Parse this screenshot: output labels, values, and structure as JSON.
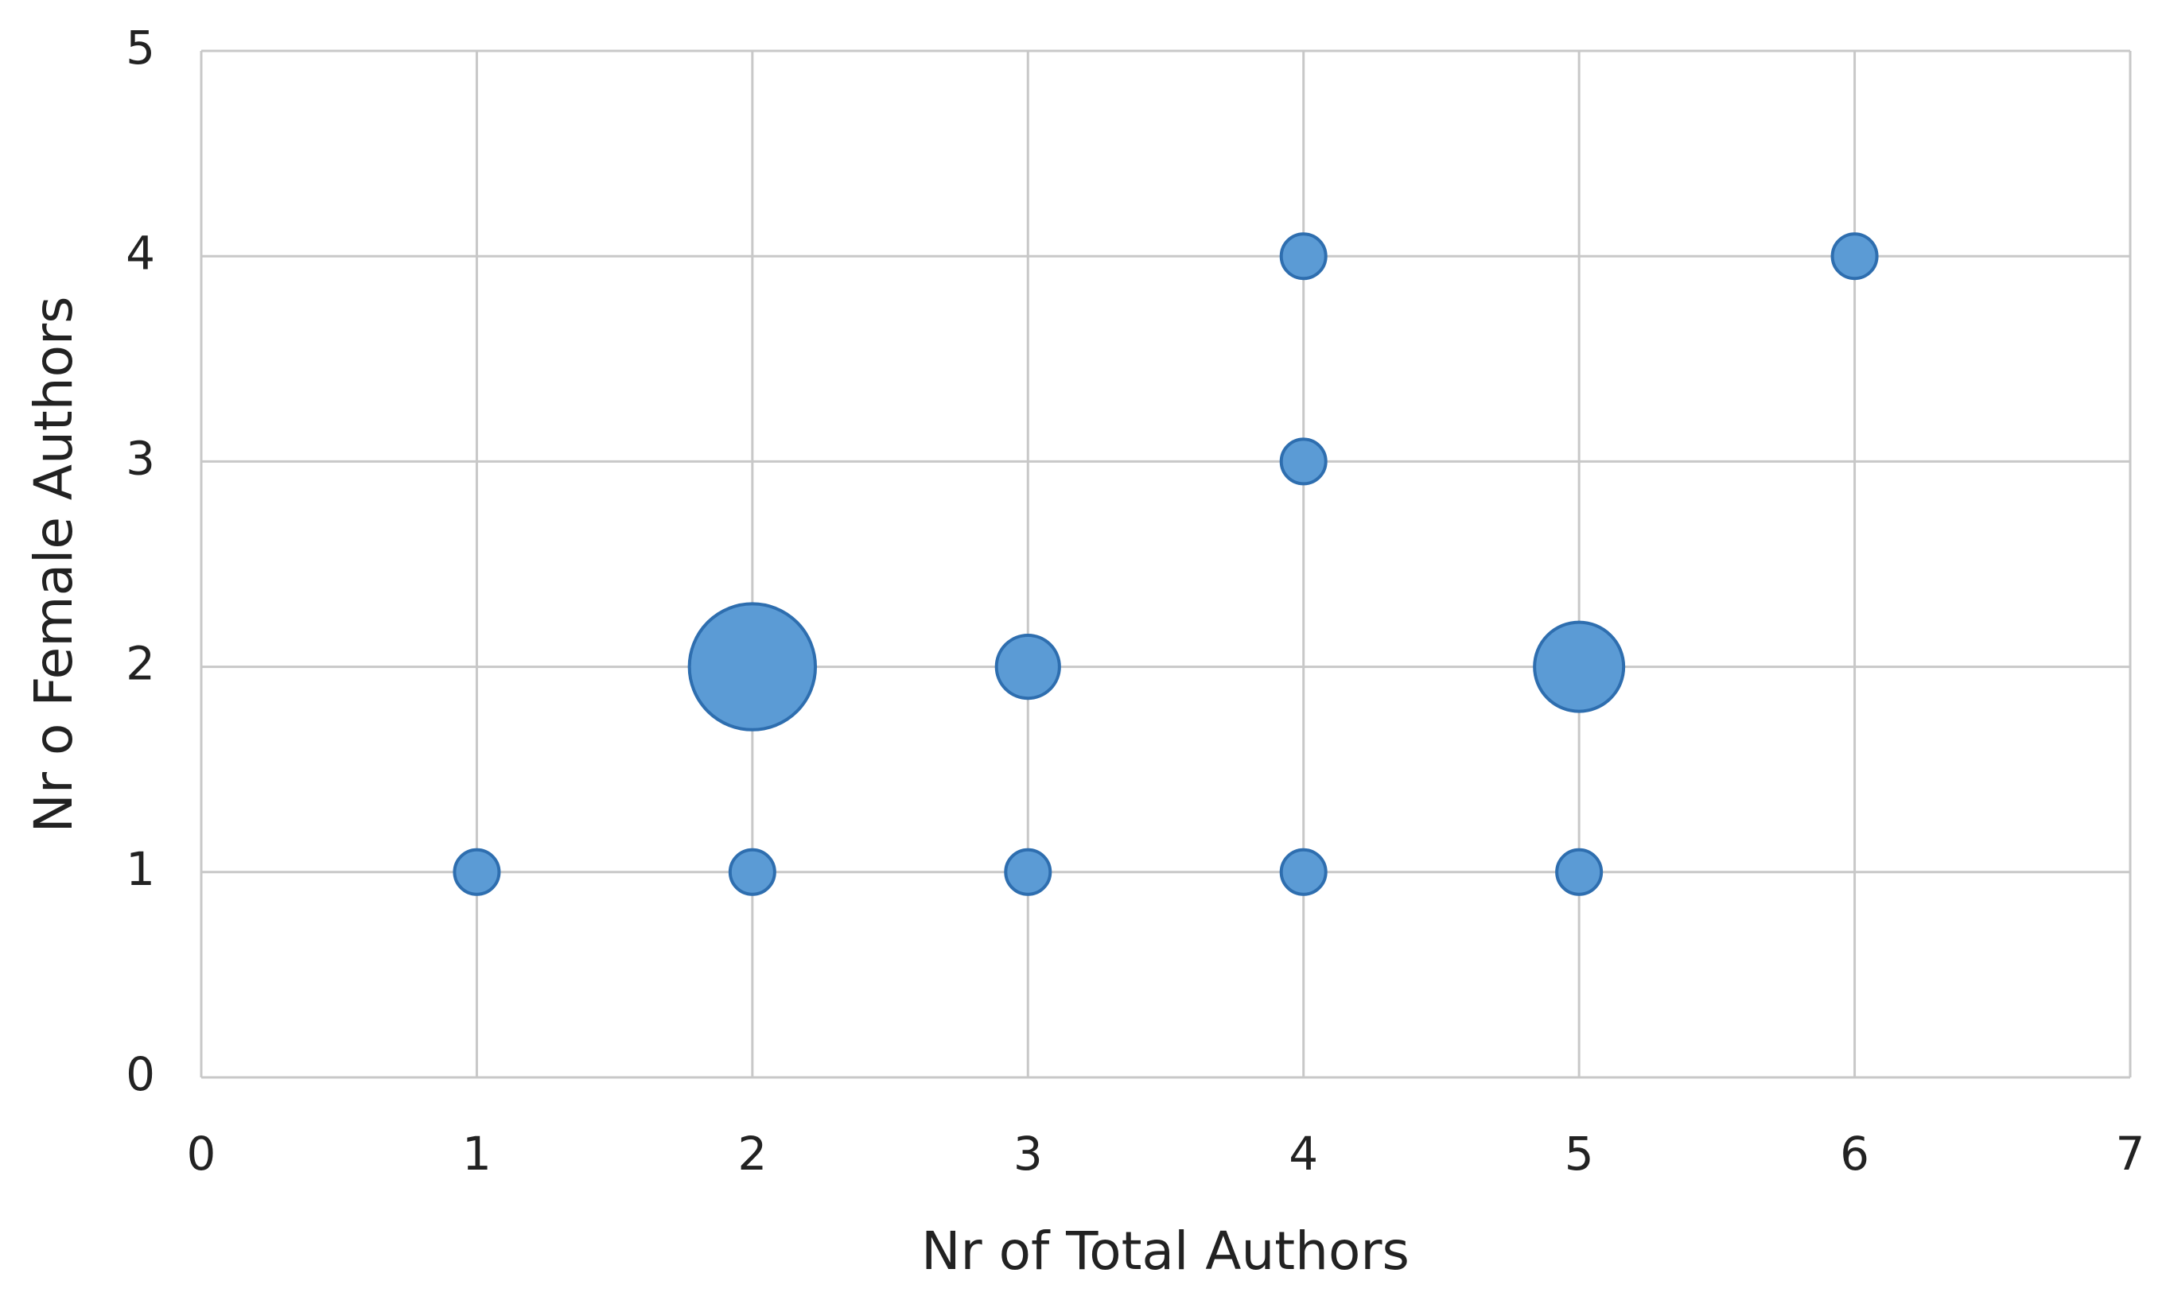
{
  "chart_data": {
    "type": "bubble",
    "x_label": "Nr of Total Authors",
    "y_label": "Nr o Female Authors",
    "x": [
      1,
      2,
      3,
      4,
      5,
      2,
      3,
      5,
      4,
      4,
      6
    ],
    "values": [
      1,
      1,
      1,
      1,
      1,
      2,
      2,
      2,
      3,
      4,
      4
    ],
    "sizes": [
      1,
      1,
      1,
      1,
      1,
      8,
      2,
      4,
      1,
      1,
      1
    ],
    "color": "#5b9bd5",
    "xlim": [
      0,
      7
    ],
    "xticks": [
      0,
      1,
      2,
      3,
      4,
      5,
      6,
      7
    ],
    "ylim": [
      0,
      5
    ],
    "yticks": [
      0,
      1,
      2,
      3,
      4,
      5
    ],
    "grid": true
  }
}
